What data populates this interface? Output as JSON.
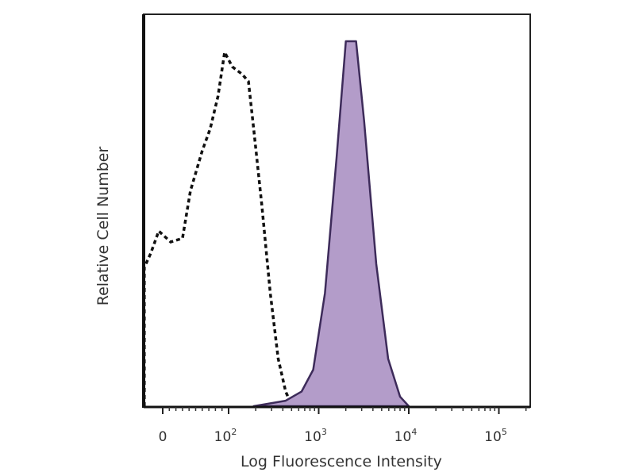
{
  "chart_data": {
    "type": "area",
    "title": "",
    "xlabel": "Log Fluorescence Intensity",
    "ylabel": "Relative Cell Number",
    "x_scale": "biexponential (linear near 0, log above 10^2)",
    "xlim": [
      -30,
      200000
    ],
    "ylim": [
      0,
      100
    ],
    "grid": false,
    "x_ticks": [
      {
        "value": 0,
        "base": "0",
        "exp": ""
      },
      {
        "value": 100,
        "base": "10",
        "exp": "2"
      },
      {
        "value": 1000,
        "base": "10",
        "exp": "3"
      },
      {
        "value": 10000,
        "base": "10",
        "exp": "4"
      },
      {
        "value": 100000,
        "base": "10",
        "exp": "5"
      }
    ],
    "series": [
      {
        "style": "dashed-outline",
        "color": "#111111",
        "points": [
          [
            -28,
            0
          ],
          [
            -28,
            38
          ],
          [
            -18,
            42
          ],
          [
            -6,
            48
          ],
          [
            12,
            45
          ],
          [
            30,
            46
          ],
          [
            42,
            59
          ],
          [
            60,
            70
          ],
          [
            72,
            76
          ],
          [
            84,
            85
          ],
          [
            94,
            97
          ],
          [
            110,
            93
          ],
          [
            141,
            91
          ],
          [
            166,
            89
          ],
          [
            190,
            76
          ],
          [
            234,
            55
          ],
          [
            290,
            31
          ],
          [
            355,
            13
          ],
          [
            430,
            4
          ],
          [
            500,
            0.4
          ]
        ]
      },
      {
        "style": "filled",
        "color": "#3d2b5a",
        "fill": "#b39cc9",
        "points": [
          [
            190,
            0
          ],
          [
            430,
            1.5
          ],
          [
            645,
            4
          ],
          [
            870,
            10
          ],
          [
            1175,
            31
          ],
          [
            1580,
            68
          ],
          [
            2000,
            100
          ],
          [
            2600,
            100
          ],
          [
            3200,
            78
          ],
          [
            4350,
            39
          ],
          [
            5900,
            13
          ],
          [
            8000,
            2.6
          ],
          [
            10000,
            0
          ]
        ]
      }
    ]
  }
}
